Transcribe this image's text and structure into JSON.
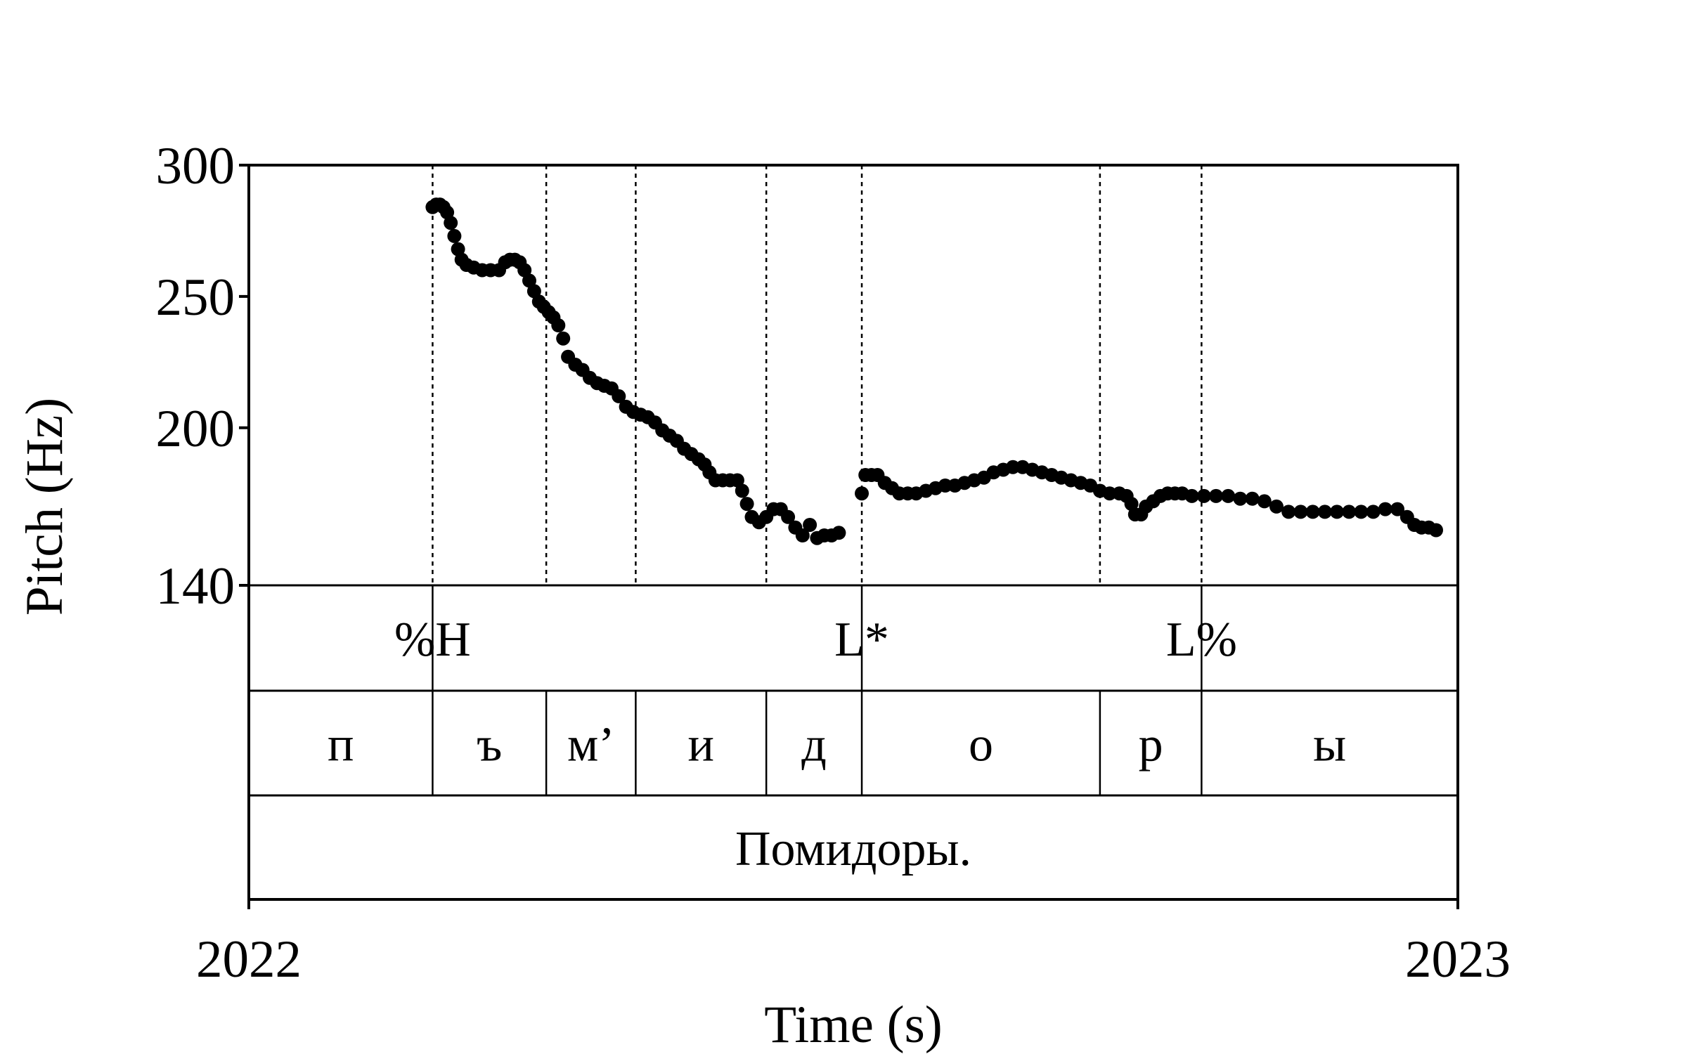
{
  "chart_data": {
    "type": "scatter",
    "title": "",
    "xlabel": "Time (s)",
    "ylabel": "Pitch (Hz)",
    "xlim": [
      2022,
      2023
    ],
    "ylim": [
      140,
      300
    ],
    "x_ticks": [
      "2022",
      "2023"
    ],
    "y_ticks": [
      140,
      200,
      250,
      300
    ],
    "marker_color": "#000000",
    "series": [
      {
        "points": [
          [
            2022.152,
            284
          ],
          [
            2022.155,
            285
          ],
          [
            2022.158,
            285
          ],
          [
            2022.161,
            284
          ],
          [
            2022.164,
            282
          ],
          [
            2022.167,
            278
          ],
          [
            2022.17,
            273
          ],
          [
            2022.173,
            268
          ],
          [
            2022.176,
            264
          ],
          [
            2022.18,
            262
          ],
          [
            2022.186,
            261
          ],
          [
            2022.193,
            260
          ],
          [
            2022.2,
            260
          ],
          [
            2022.207,
            260
          ],
          [
            2022.212,
            263
          ],
          [
            2022.216,
            264
          ],
          [
            2022.22,
            264
          ],
          [
            2022.224,
            263
          ],
          [
            2022.228,
            260
          ],
          [
            2022.232,
            256
          ],
          [
            2022.236,
            252
          ],
          [
            2022.24,
            248
          ],
          [
            2022.244,
            246
          ],
          [
            2022.248,
            244
          ],
          [
            2022.252,
            242
          ],
          [
            2022.256,
            239
          ],
          [
            2022.26,
            234
          ],
          [
            2022.264,
            227
          ],
          [
            2022.27,
            224
          ],
          [
            2022.276,
            222
          ],
          [
            2022.282,
            219
          ],
          [
            2022.288,
            217
          ],
          [
            2022.294,
            216
          ],
          [
            2022.3,
            215
          ],
          [
            2022.306,
            212
          ],
          [
            2022.312,
            208
          ],
          [
            2022.318,
            206
          ],
          [
            2022.324,
            205
          ],
          [
            2022.33,
            204
          ],
          [
            2022.336,
            202
          ],
          [
            2022.342,
            199
          ],
          [
            2022.348,
            197
          ],
          [
            2022.354,
            195
          ],
          [
            2022.36,
            192
          ],
          [
            2022.366,
            190
          ],
          [
            2022.372,
            188
          ],
          [
            2022.377,
            186
          ],
          [
            2022.381,
            183
          ],
          [
            2022.386,
            180
          ],
          [
            2022.392,
            180
          ],
          [
            2022.398,
            180
          ],
          [
            2022.404,
            180
          ],
          [
            2022.408,
            176
          ],
          [
            2022.412,
            171
          ],
          [
            2022.416,
            166
          ],
          [
            2022.422,
            164
          ],
          [
            2022.428,
            166
          ],
          [
            2022.434,
            169
          ],
          [
            2022.44,
            169
          ],
          [
            2022.446,
            166
          ],
          [
            2022.452,
            162
          ],
          [
            2022.458,
            159
          ],
          [
            2022.464,
            163
          ],
          [
            2022.47,
            158
          ],
          [
            2022.476,
            159
          ],
          [
            2022.482,
            159
          ],
          [
            2022.488,
            160
          ],
          [
            2022.507,
            175
          ],
          [
            2022.51,
            182
          ],
          [
            2022.515,
            182
          ],
          [
            2022.52,
            182
          ],
          [
            2022.526,
            179
          ],
          [
            2022.532,
            177
          ],
          [
            2022.538,
            175
          ],
          [
            2022.545,
            175
          ],
          [
            2022.552,
            175
          ],
          [
            2022.56,
            176
          ],
          [
            2022.568,
            177
          ],
          [
            2022.576,
            178
          ],
          [
            2022.584,
            178
          ],
          [
            2022.592,
            179
          ],
          [
            2022.6,
            180
          ],
          [
            2022.608,
            181
          ],
          [
            2022.616,
            183
          ],
          [
            2022.624,
            184
          ],
          [
            2022.632,
            185
          ],
          [
            2022.64,
            185
          ],
          [
            2022.648,
            184
          ],
          [
            2022.656,
            183
          ],
          [
            2022.664,
            182
          ],
          [
            2022.672,
            181
          ],
          [
            2022.68,
            180
          ],
          [
            2022.688,
            179
          ],
          [
            2022.696,
            178
          ],
          [
            2022.704,
            176
          ],
          [
            2022.712,
            175
          ],
          [
            2022.72,
            175
          ],
          [
            2022.726,
            174
          ],
          [
            2022.73,
            171
          ],
          [
            2022.733,
            167
          ],
          [
            2022.738,
            167
          ],
          [
            2022.742,
            170
          ],
          [
            2022.748,
            172
          ],
          [
            2022.754,
            174
          ],
          [
            2022.76,
            175
          ],
          [
            2022.766,
            175
          ],
          [
            2022.772,
            175
          ],
          [
            2022.78,
            174
          ],
          [
            2022.79,
            174
          ],
          [
            2022.8,
            174
          ],
          [
            2022.81,
            174
          ],
          [
            2022.82,
            173
          ],
          [
            2022.83,
            173
          ],
          [
            2022.84,
            172
          ],
          [
            2022.85,
            170
          ],
          [
            2022.86,
            168
          ],
          [
            2022.87,
            168
          ],
          [
            2022.88,
            168
          ],
          [
            2022.89,
            168
          ],
          [
            2022.9,
            168
          ],
          [
            2022.91,
            168
          ],
          [
            2022.92,
            168
          ],
          [
            2022.93,
            168
          ],
          [
            2022.94,
            169
          ],
          [
            2022.95,
            169
          ],
          [
            2022.958,
            166
          ],
          [
            2022.964,
            163
          ],
          [
            2022.97,
            162
          ],
          [
            2022.976,
            162
          ],
          [
            2022.982,
            161
          ]
        ]
      }
    ]
  },
  "tiers": {
    "tones": {
      "boundaries": [
        2022.152,
        2022.507,
        2022.788
      ],
      "labels": [
        {
          "text": "%H",
          "at": 2022.152
        },
        {
          "text": "L*",
          "at": 2022.507
        },
        {
          "text": "L%",
          "at": 2022.788
        }
      ]
    },
    "segments": {
      "boundaries": [
        2022.152,
        2022.246,
        2022.32,
        2022.428,
        2022.507,
        2022.704,
        2022.788
      ],
      "labels": [
        {
          "text": "п",
          "from": 2022.0,
          "to": 2022.152
        },
        {
          "text": "ъ",
          "from": 2022.152,
          "to": 2022.246
        },
        {
          "text": "м’",
          "from": 2022.246,
          "to": 2022.32
        },
        {
          "text": "и",
          "from": 2022.32,
          "to": 2022.428
        },
        {
          "text": "д",
          "from": 2022.428,
          "to": 2022.507
        },
        {
          "text": "о",
          "from": 2022.507,
          "to": 2022.704
        },
        {
          "text": "р",
          "from": 2022.704,
          "to": 2022.788
        },
        {
          "text": "ы",
          "from": 2022.788,
          "to": 2023.0
        }
      ]
    },
    "words": {
      "labels": [
        {
          "text": "Помидоры.",
          "from": 2022.0,
          "to": 2023.0
        }
      ]
    }
  }
}
